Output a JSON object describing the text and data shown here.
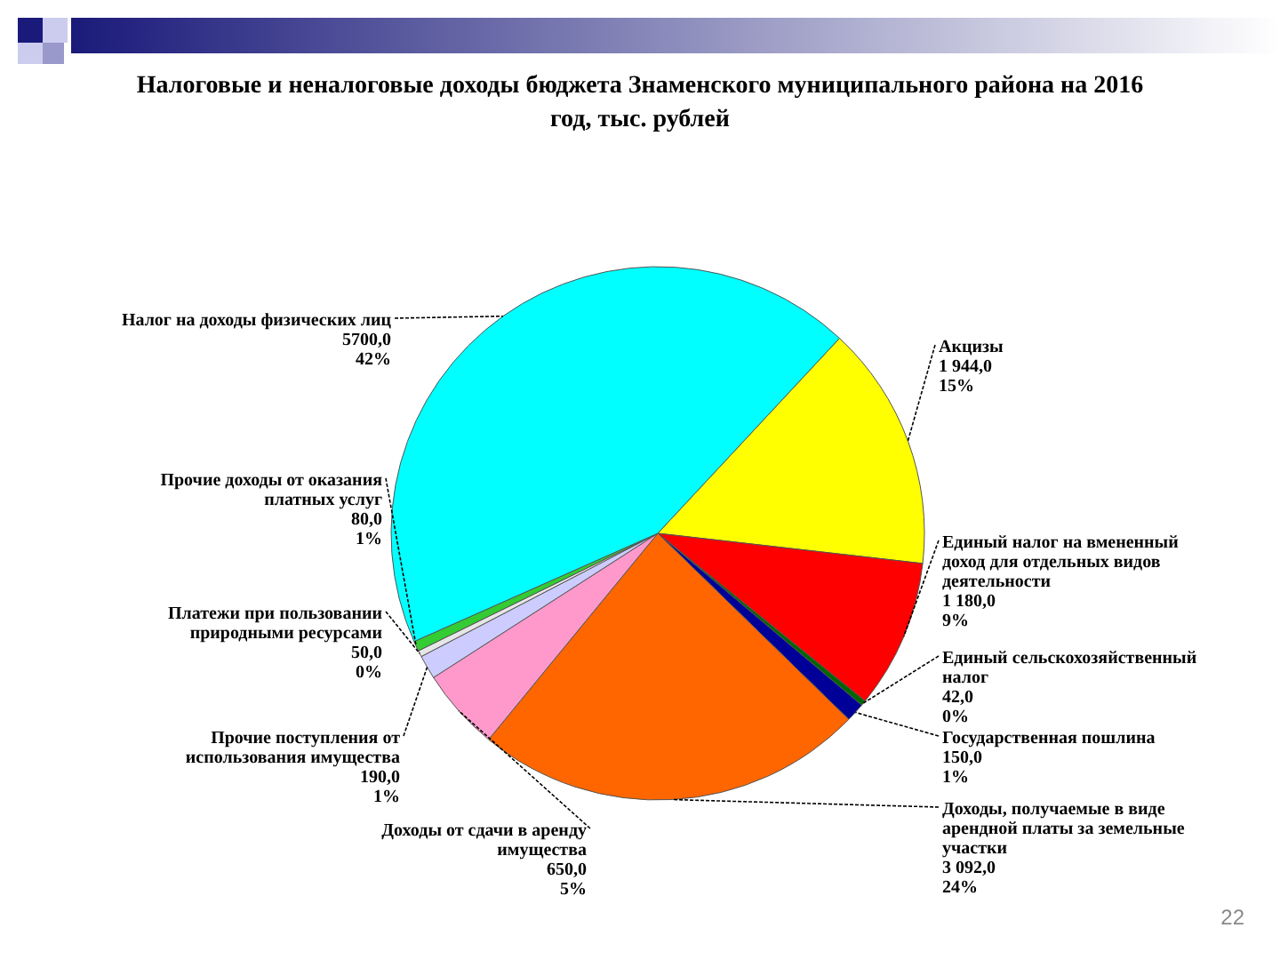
{
  "chart_data": {
    "type": "pie",
    "title": "Налоговые и неналоговые доходы бюджета Знаменского муниципального района на 2016 год, тыс. рублей",
    "categories": [
      "Акцизы",
      "Единый налог на вмененный доход для отдельных видов деятельности",
      "Единый сельскохозяйственный налог",
      "Государственная пошлина",
      "Доходы, получаемые в виде арендной платы за земельные участки",
      "Доходы от сдачи в аренду имущества",
      "Прочие поступления от использования имущества",
      "Платежи при пользовании природными ресурсами",
      "Прочие доходы от оказания платных услуг",
      "Налог на доходы физических лиц"
    ],
    "values": [
      1944,
      1180,
      42,
      150,
      3092,
      650,
      190,
      50,
      80,
      5700
    ],
    "value_labels": [
      "1 944,0\n15%",
      "1 180,0\n9%",
      "42,0\n0%",
      "150,0\n1%",
      "3 092,0\n24%",
      "650,0\n5%",
      "190,0\n1%",
      "50,0\n0%",
      "80,0\n1%",
      "5700,0\n42%"
    ],
    "colors": [
      "#ffff00",
      "#ff0000",
      "#006600",
      "#000099",
      "#ff6600",
      "#ff99cc",
      "#ccccff",
      "#e6e6e6",
      "#33cc33",
      "#00ffff"
    ],
    "annotations": [
      "22"
    ]
  }
}
